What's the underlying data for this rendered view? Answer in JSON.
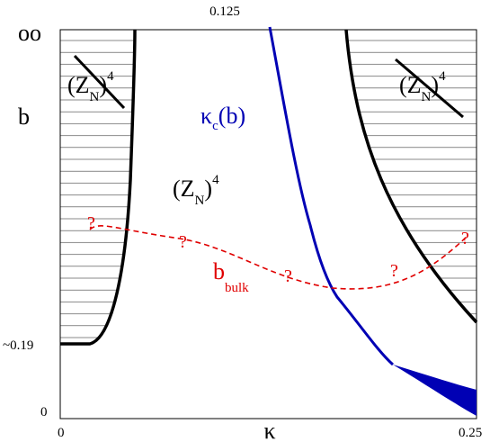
{
  "axes": {
    "top_tick": "0.125",
    "y_top": "oo",
    "y_label": "b",
    "y_mid": "~0.19",
    "y_bottom": "0",
    "x_left": "0",
    "x_label": "κ",
    "x_right": "0.25"
  },
  "regions": [
    {
      "main": "(Z",
      "sub": "N",
      "tail": ")",
      "sup": "4"
    },
    {
      "main": "(Z",
      "sub": "N",
      "tail": ")",
      "sup": "4"
    },
    {
      "main": "(Z",
      "sub": "N",
      "tail": ")",
      "sup": "4"
    }
  ],
  "critical": {
    "main": "κ",
    "sub": "c",
    "tail": "(b)"
  },
  "bulk": {
    "main": "b",
    "sub": "bulk"
  },
  "question_marks": [
    "?",
    "?",
    "?",
    "?",
    "?"
  ]
}
